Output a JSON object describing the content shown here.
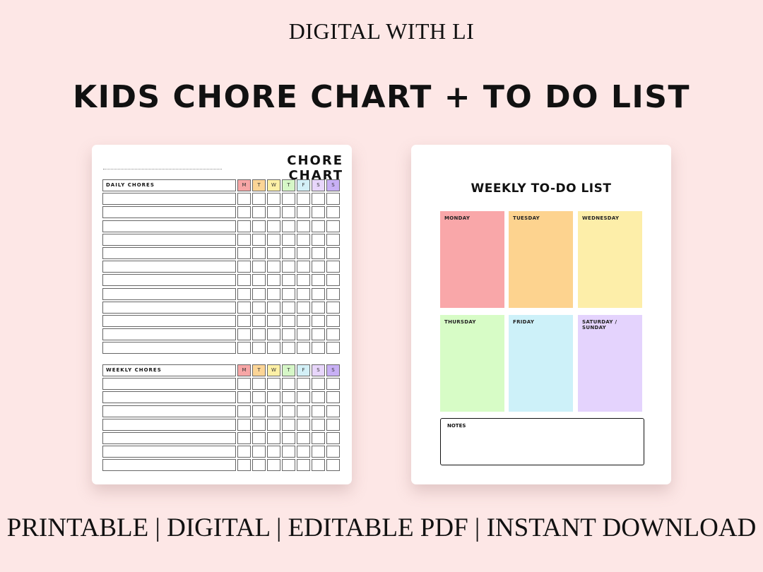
{
  "header": {
    "brand": "DIGITAL WITH LI",
    "title": "KIDS CHORE CHART + TO DO LIST"
  },
  "footer": {
    "text": "PRINTABLE | DIGITAL | EDITABLE PDF | INSTANT DOWNLOAD"
  },
  "chore_chart": {
    "title": "CHORE CHART",
    "days": [
      "M",
      "T",
      "W",
      "T",
      "F",
      "S",
      "S"
    ],
    "day_colors": [
      "#f7a6a6",
      "#fcd596",
      "#fdf0a6",
      "#d6f7c7",
      "#d3f0f7",
      "#e8d6fb",
      "#c8b0f5"
    ],
    "daily": {
      "label": "DAILY CHORES",
      "rows": 12
    },
    "weekly": {
      "label": "WEEKLY CHORES",
      "rows": 7
    }
  },
  "todo_list": {
    "title": "WEEKLY TO-DO LIST",
    "days": [
      {
        "label": "MONDAY",
        "color": "#f9a7a9"
      },
      {
        "label": "TUESDAY",
        "color": "#fdd38f"
      },
      {
        "label": "WEDNESDAY",
        "color": "#fdeea9"
      },
      {
        "label": "THURSDAY",
        "color": "#d7fcc6"
      },
      {
        "label": "FRIDAY",
        "color": "#cdf1f9"
      },
      {
        "label": "SATURDAY / SUNDAY",
        "color": "#e4d3fd"
      }
    ],
    "notes_label": "NOTES"
  }
}
